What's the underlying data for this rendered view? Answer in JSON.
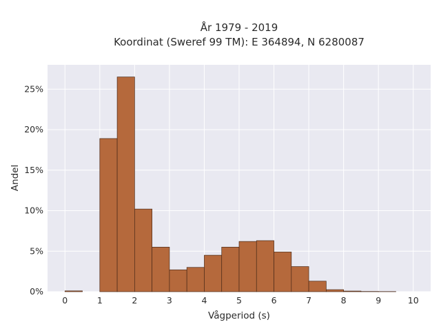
{
  "chart_data": {
    "type": "bar",
    "title_line1": "År 1979 - 2019",
    "title_line2": "Koordinat (Sweref 99 TM): E 364894, N 6280087",
    "xlabel": "Vågperiod (s)",
    "ylabel": "Andel",
    "bin_width": 0.5,
    "bins": [
      {
        "start": 0.0,
        "value": 0.1
      },
      {
        "start": 0.5,
        "value": 0.0
      },
      {
        "start": 1.0,
        "value": 18.9
      },
      {
        "start": 1.5,
        "value": 26.5
      },
      {
        "start": 2.0,
        "value": 10.2
      },
      {
        "start": 2.5,
        "value": 5.5
      },
      {
        "start": 3.0,
        "value": 2.7
      },
      {
        "start": 3.5,
        "value": 3.0
      },
      {
        "start": 4.0,
        "value": 4.5
      },
      {
        "start": 4.5,
        "value": 5.5
      },
      {
        "start": 5.0,
        "value": 6.2
      },
      {
        "start": 5.5,
        "value": 6.3
      },
      {
        "start": 6.0,
        "value": 4.9
      },
      {
        "start": 6.5,
        "value": 3.1
      },
      {
        "start": 7.0,
        "value": 1.3
      },
      {
        "start": 7.5,
        "value": 0.25
      },
      {
        "start": 8.0,
        "value": 0.08
      },
      {
        "start": 8.5,
        "value": 0.03
      },
      {
        "start": 9.0,
        "value": 0.02
      }
    ],
    "xlim": [
      -0.5,
      10.5
    ],
    "ylim": [
      0,
      28
    ],
    "xticks": [
      0,
      1,
      2,
      3,
      4,
      5,
      6,
      7,
      8,
      9,
      10
    ],
    "yticks": [
      0,
      5,
      10,
      15,
      20,
      25
    ],
    "ytick_suffix": "%",
    "grid": true,
    "colors": {
      "bar_fill": "#b5693c",
      "bar_edge": "#4a2a18",
      "plot_background": "#e9e9f1",
      "grid": "#ffffff"
    }
  }
}
